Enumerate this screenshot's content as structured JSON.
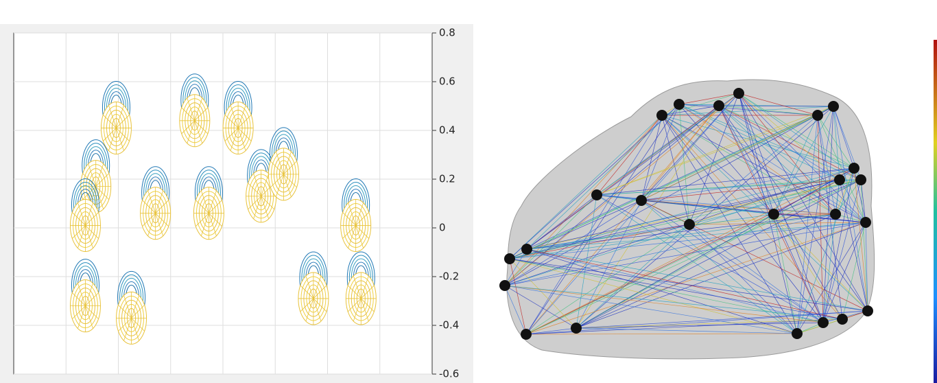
{
  "chart_data": {
    "type": "scatter",
    "x": [
      0.96,
      0.57,
      0.37,
      0.37,
      1.25,
      1.71,
      2.46,
      2.73,
      3.29,
      3.73,
      4.16,
      4.73,
      5.54,
      5.64
    ],
    "values": [
      0.41,
      0.17,
      0.01,
      -0.32,
      -0.37,
      0.06,
      0.44,
      0.06,
      0.41,
      0.13,
      0.22,
      -0.29,
      0.01,
      -0.29
    ],
    "xlim": [
      -1,
      7
    ],
    "xticks": [
      0,
      1,
      2,
      3,
      4,
      5,
      6
    ],
    "ylim": [
      -0.6,
      0.8
    ],
    "yticks": [
      0.8,
      0.6,
      0.4,
      0.2,
      0,
      -0.2,
      -0.4,
      -0.6
    ],
    "grid": true,
    "color": "#e8c23a"
  }
}
